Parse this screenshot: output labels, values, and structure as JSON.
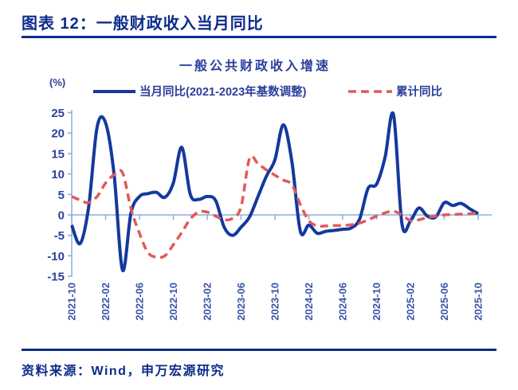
{
  "header": {
    "title": "图表 12：一般财政收入当月同比"
  },
  "footer": {
    "source_label": "资料来源：Wind，申万宏源研究"
  },
  "colors": {
    "header_navy": "#0d2c8a",
    "chart_text_navy": "#2d3f9b",
    "axis_light_blue": "#88aedc",
    "monthly_line_blue": "#14389e",
    "cumulative_line_red": "#e05a5a"
  },
  "chart_data": {
    "type": "line",
    "title": "一般公共财政收入增速",
    "y_unit": "(%)",
    "ylim": [
      -15,
      25
    ],
    "y_ticks": [
      25,
      20,
      15,
      10,
      5,
      0,
      -5,
      -10,
      -15
    ],
    "x_tick_labels": [
      "2021-10",
      "2022-02",
      "2022-06",
      "2022-10",
      "2023-02",
      "2023-06",
      "2023-10",
      "2024-02",
      "2024-06",
      "2024-10",
      "2025-02",
      "2025-06",
      "2025-10"
    ],
    "grid": false,
    "legend_position": "top",
    "x": [
      "2021-10",
      "2021-11",
      "2021-12",
      "2022-01",
      "2022-02",
      "2022-03",
      "2022-04",
      "2022-05",
      "2022-06",
      "2022-07",
      "2022-08",
      "2022-09",
      "2022-10",
      "2022-11",
      "2022-12",
      "2023-01",
      "2023-02",
      "2023-03",
      "2023-04",
      "2023-05",
      "2023-06",
      "2023-07",
      "2023-08",
      "2023-09",
      "2023-10",
      "2023-11",
      "2023-12",
      "2024-01",
      "2024-02",
      "2024-03",
      "2024-04",
      "2024-05",
      "2024-06",
      "2024-07",
      "2024-08",
      "2024-09",
      "2024-10",
      "2024-11",
      "2024-12",
      "2025-01",
      "2025-02",
      "2025-03",
      "2025-04",
      "2025-05",
      "2025-06",
      "2025-07",
      "2025-08",
      "2025-09",
      "2025-10"
    ],
    "series": [
      {
        "name": "当月同比(2021-2023年基数调整)",
        "color": "#14389e",
        "style": "solid",
        "values": [
          -2.5,
          -7,
          2,
          21.5,
          22.5,
          10,
          -13.5,
          0.5,
          4.5,
          5.2,
          5.5,
          4.3,
          7.8,
          16.5,
          5,
          3.8,
          4.5,
          3.5,
          -3,
          -5,
          -3,
          -0.5,
          4.5,
          9.5,
          13.5,
          22,
          13,
          -4,
          -2.5,
          -4.5,
          -4,
          -3.8,
          -3.5,
          -3.2,
          -1,
          6.5,
          7.5,
          14,
          24.5,
          -2.2,
          -1.5,
          1.7,
          -0.3,
          -0.5,
          3,
          2.3,
          2.8,
          1.5,
          0.3
        ]
      },
      {
        "name": "累计同比",
        "color": "#e05a5a",
        "style": "dashed",
        "values": [
          4.5,
          3.6,
          3,
          4.5,
          7.8,
          9.8,
          10.3,
          1.5,
          -4.5,
          -9.2,
          -10.3,
          -10,
          -7.3,
          -4.3,
          -1,
          0.7,
          0.7,
          -0.3,
          -1.2,
          -0.8,
          2,
          13.8,
          12.5,
          11,
          9.7,
          8.5,
          7.4,
          2.5,
          -1.4,
          -2.7,
          -2.7,
          -2.6,
          -2.6,
          -2.4,
          -2,
          -1.2,
          -0.3,
          0.5,
          0.9,
          0,
          -1.4,
          -1.2,
          -0.6,
          -0.3,
          0,
          0.1,
          0.2,
          0.3,
          0.5
        ]
      }
    ]
  }
}
